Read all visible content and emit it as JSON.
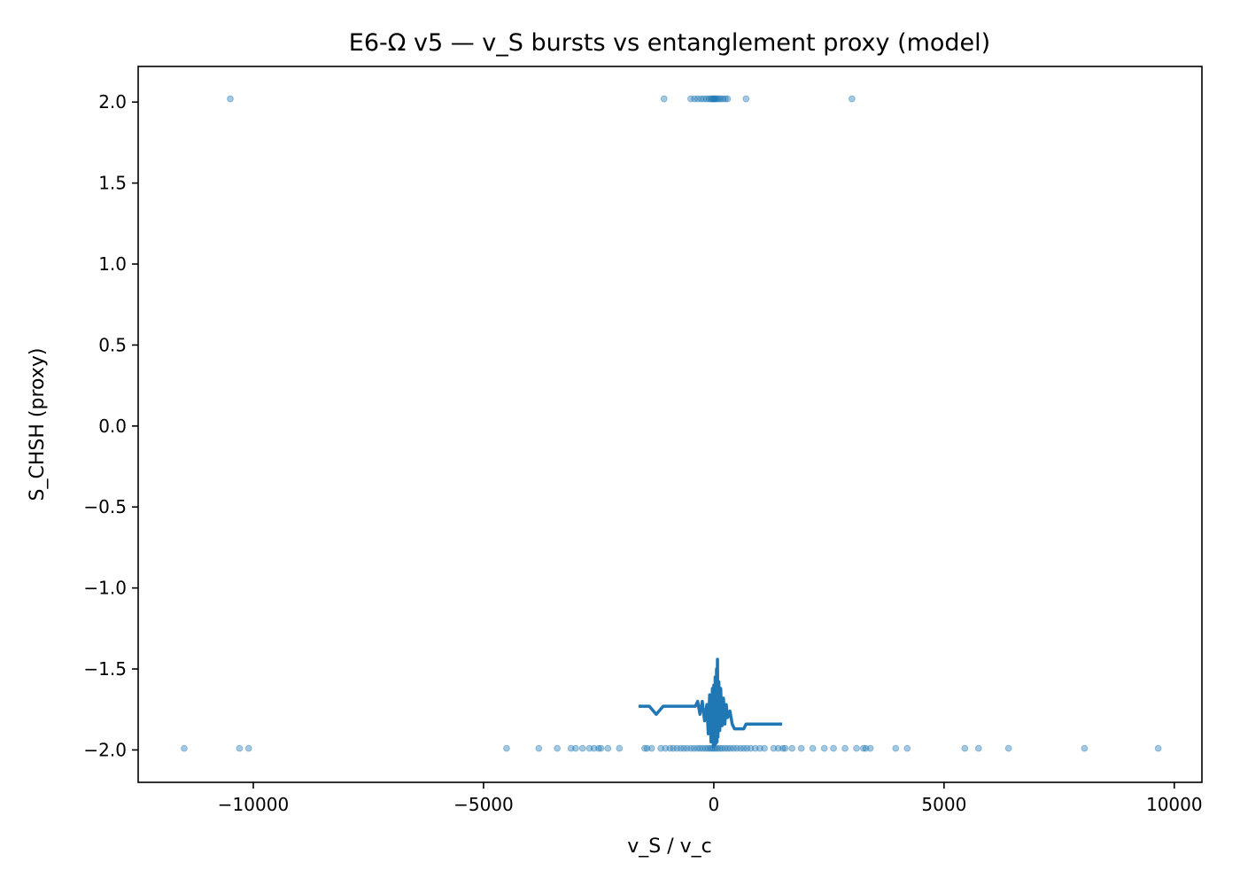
{
  "chart_data": {
    "type": "scatter",
    "title": "E6-Ω v5 — v_S bursts vs entanglement proxy (model)",
    "xlabel": "v_S / v_c",
    "ylabel": "S_CHSH (proxy)",
    "xlim": [
      -12500,
      10600
    ],
    "ylim": [
      -2.2,
      2.22
    ],
    "xticks": [
      {
        "value": -10000,
        "label": "−10000"
      },
      {
        "value": -5000,
        "label": "−5000"
      },
      {
        "value": 0,
        "label": "0"
      },
      {
        "value": 5000,
        "label": "5000"
      },
      {
        "value": 10000,
        "label": "10000"
      }
    ],
    "yticks": [
      {
        "value": 2.0,
        "label": "2.0"
      },
      {
        "value": 1.5,
        "label": "1.5"
      },
      {
        "value": 1.0,
        "label": "1.0"
      },
      {
        "value": 0.5,
        "label": "0.5"
      },
      {
        "value": 0.0,
        "label": "0.0"
      },
      {
        "value": -0.5,
        "label": "−0.5"
      },
      {
        "value": -1.0,
        "label": "−1.0"
      },
      {
        "value": -1.5,
        "label": "−1.5"
      },
      {
        "value": -2.0,
        "label": "−2.0"
      }
    ],
    "grid": false,
    "color": "#1f77b4",
    "series": [
      {
        "type": "scatter",
        "alpha": 0.4,
        "points": [
          [
            -10500,
            2.02
          ],
          [
            -1080,
            2.02
          ],
          [
            -500,
            2.02
          ],
          [
            -420,
            2.02
          ],
          [
            -350,
            2.02
          ],
          [
            -280,
            2.02
          ],
          [
            -220,
            2.02
          ],
          [
            -160,
            2.02
          ],
          [
            -110,
            2.02
          ],
          [
            -70,
            2.02
          ],
          [
            -40,
            2.02
          ],
          [
            -15,
            2.02
          ],
          [
            0,
            2.02
          ],
          [
            20,
            2.02
          ],
          [
            45,
            2.02
          ],
          [
            75,
            2.02
          ],
          [
            110,
            2.02
          ],
          [
            150,
            2.02
          ],
          [
            200,
            2.02
          ],
          [
            250,
            2.02
          ],
          [
            300,
            2.02
          ],
          [
            700,
            2.02
          ],
          [
            3000,
            2.02
          ],
          [
            -11500,
            -1.99
          ],
          [
            -10300,
            -1.99
          ],
          [
            -10100,
            -1.99
          ],
          [
            -4500,
            -1.99
          ],
          [
            -3800,
            -1.99
          ],
          [
            -3400,
            -1.99
          ],
          [
            -3100,
            -1.99
          ],
          [
            -3000,
            -1.99
          ],
          [
            -2850,
            -1.99
          ],
          [
            -2700,
            -1.99
          ],
          [
            -2600,
            -1.99
          ],
          [
            -2500,
            -1.99
          ],
          [
            -2450,
            -1.99
          ],
          [
            -2300,
            -1.99
          ],
          [
            -2050,
            -1.99
          ],
          [
            -1500,
            -1.99
          ],
          [
            -1450,
            -1.99
          ],
          [
            -1350,
            -1.99
          ],
          [
            -1150,
            -1.99
          ],
          [
            -1050,
            -1.99
          ],
          [
            -950,
            -1.99
          ],
          [
            -880,
            -1.99
          ],
          [
            -800,
            -1.99
          ],
          [
            -720,
            -1.99
          ],
          [
            -650,
            -1.99
          ],
          [
            -580,
            -1.99
          ],
          [
            -500,
            -1.99
          ],
          [
            -430,
            -1.99
          ],
          [
            -360,
            -1.99
          ],
          [
            -300,
            -1.99
          ],
          [
            -240,
            -1.99
          ],
          [
            -180,
            -1.99
          ],
          [
            -130,
            -1.99
          ],
          [
            -80,
            -1.99
          ],
          [
            -40,
            -1.99
          ],
          [
            0,
            -1.99
          ],
          [
            40,
            -1.99
          ],
          [
            80,
            -1.99
          ],
          [
            130,
            -1.99
          ],
          [
            180,
            -1.99
          ],
          [
            240,
            -1.99
          ],
          [
            300,
            -1.99
          ],
          [
            360,
            -1.99
          ],
          [
            430,
            -1.99
          ],
          [
            500,
            -1.99
          ],
          [
            580,
            -1.99
          ],
          [
            650,
            -1.99
          ],
          [
            720,
            -1.99
          ],
          [
            800,
            -1.99
          ],
          [
            900,
            -1.99
          ],
          [
            1000,
            -1.99
          ],
          [
            1100,
            -1.99
          ],
          [
            1300,
            -1.99
          ],
          [
            1400,
            -1.99
          ],
          [
            1500,
            -1.99
          ],
          [
            1550,
            -1.99
          ],
          [
            1700,
            -1.99
          ],
          [
            1900,
            -1.99
          ],
          [
            2150,
            -1.99
          ],
          [
            2400,
            -1.99
          ],
          [
            2600,
            -1.99
          ],
          [
            2850,
            -1.99
          ],
          [
            3100,
            -1.99
          ],
          [
            3250,
            -1.99
          ],
          [
            3300,
            -1.99
          ],
          [
            3400,
            -1.99
          ],
          [
            3950,
            -1.99
          ],
          [
            4200,
            -1.99
          ],
          [
            5450,
            -1.99
          ],
          [
            5750,
            -1.99
          ],
          [
            6400,
            -1.99
          ],
          [
            8050,
            -1.99
          ],
          [
            9650,
            -1.99
          ]
        ]
      },
      {
        "type": "line",
        "points": [
          [
            -1600,
            -1.73
          ],
          [
            -1400,
            -1.73
          ],
          [
            -1250,
            -1.78
          ],
          [
            -1100,
            -1.73
          ],
          [
            -400,
            -1.73
          ],
          [
            -350,
            -1.7
          ],
          [
            -300,
            -1.78
          ],
          [
            -250,
            -1.7
          ],
          [
            -200,
            -1.82
          ],
          [
            -150,
            -1.72
          ],
          [
            -120,
            -1.9
          ],
          [
            -90,
            -1.66
          ],
          [
            -60,
            -1.95
          ],
          [
            -30,
            -1.62
          ],
          [
            -10,
            -1.98
          ],
          [
            0,
            -1.6
          ],
          [
            15,
            -1.97
          ],
          [
            30,
            -1.55
          ],
          [
            45,
            -1.96
          ],
          [
            60,
            -1.5
          ],
          [
            70,
            -1.95
          ],
          [
            80,
            -1.44
          ],
          [
            90,
            -1.92
          ],
          [
            110,
            -1.58
          ],
          [
            130,
            -1.88
          ],
          [
            150,
            -1.62
          ],
          [
            180,
            -1.85
          ],
          [
            210,
            -1.68
          ],
          [
            240,
            -1.84
          ],
          [
            270,
            -1.72
          ],
          [
            300,
            -1.8
          ],
          [
            350,
            -1.76
          ],
          [
            400,
            -1.84
          ],
          [
            450,
            -1.87
          ],
          [
            650,
            -1.87
          ],
          [
            700,
            -1.84
          ],
          [
            1450,
            -1.84
          ]
        ]
      }
    ]
  }
}
